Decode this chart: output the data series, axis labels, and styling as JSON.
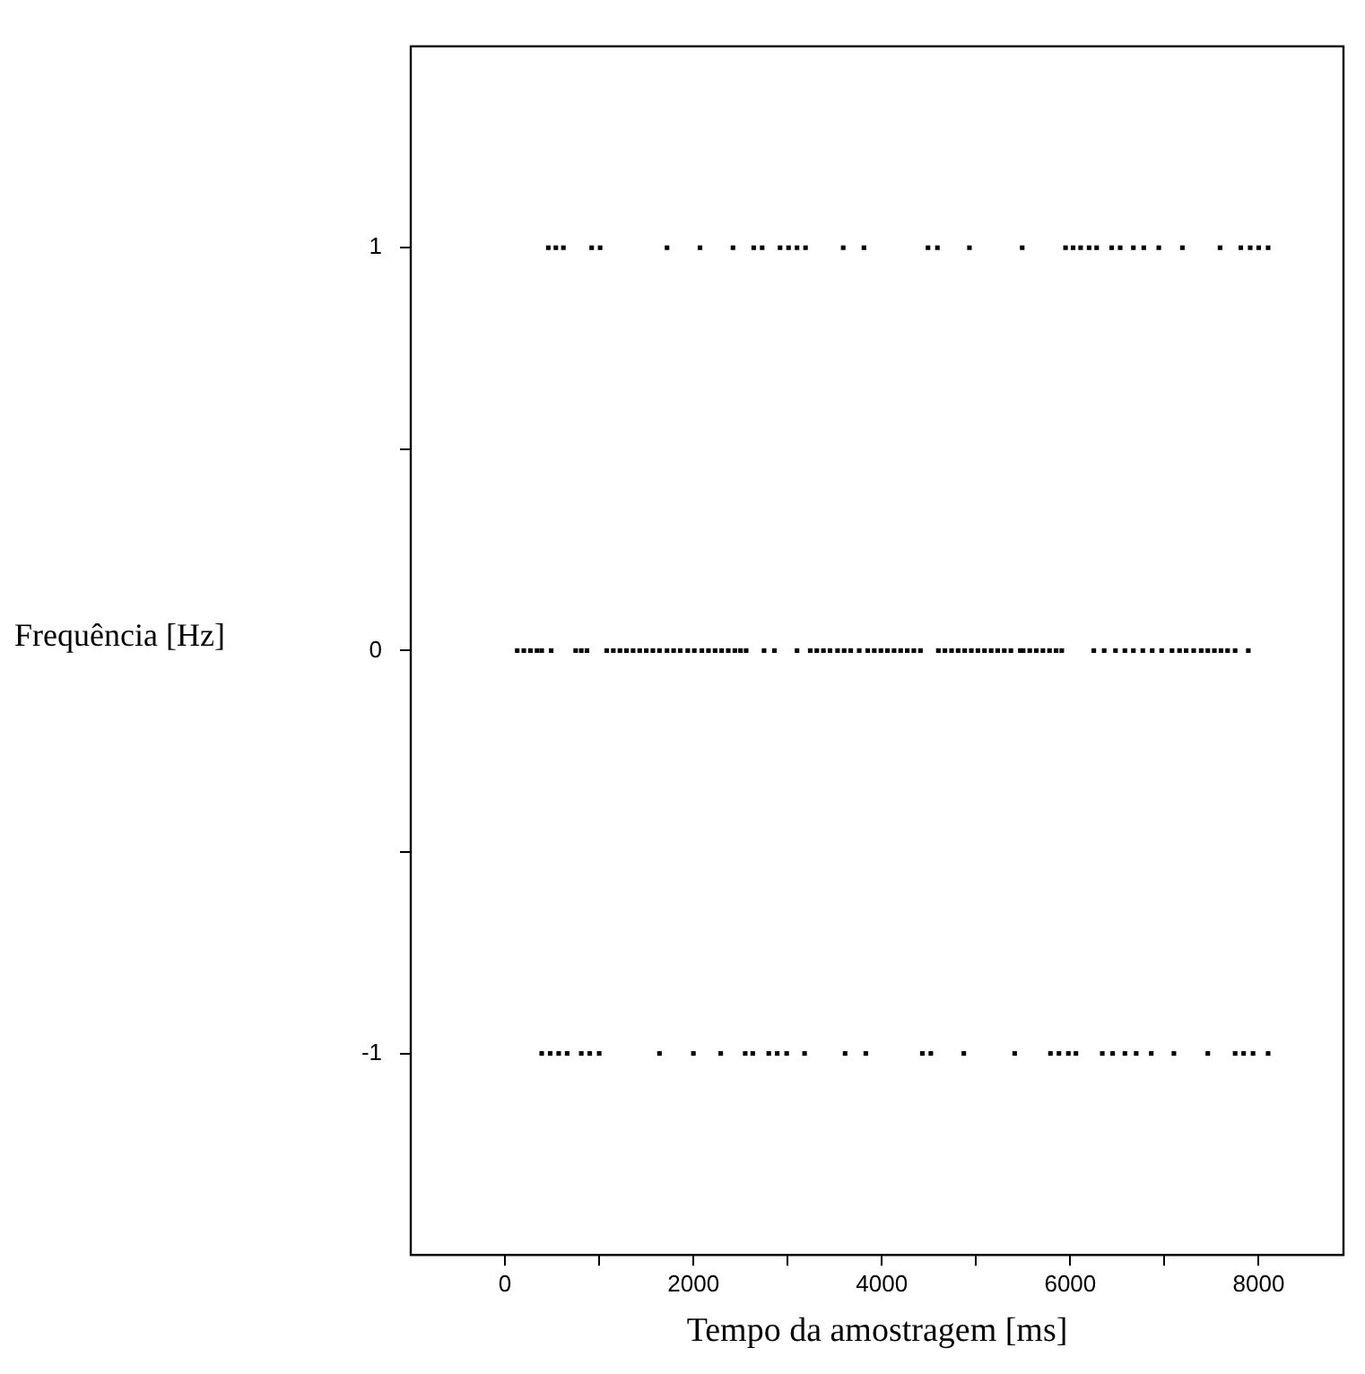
{
  "chart_data": {
    "type": "scatter",
    "xlabel": "Tempo da amostragem [ms]",
    "ylabel": "Frequência [Hz]",
    "marker": "square",
    "grid": false,
    "legend": false,
    "xlim": [
      -1000,
      8900
    ],
    "xticks": [
      0,
      {
        "value": 1000,
        "label": null
      },
      2000,
      {
        "value": 3000,
        "label": null
      },
      4000,
      {
        "value": 5000,
        "label": null
      },
      6000,
      {
        "value": 7000,
        "label": null
      },
      8000
    ],
    "ylim": [
      -1.5,
      1.5
    ],
    "yticks": [
      -1,
      {
        "value": -0.5,
        "label": null
      },
      0,
      {
        "value": 0.5,
        "label": null
      },
      1
    ],
    "series": [
      {
        "color": "#000000",
        "x": [
          460,
          540,
          620,
          920,
          1010,
          1720,
          2070,
          2420,
          2640,
          2730,
          2920,
          3010,
          3100,
          3190,
          3590,
          3810,
          4490,
          4590,
          4930,
          5490,
          5950,
          6030,
          6110,
          6200,
          6280,
          6440,
          6530,
          6670,
          6780,
          6940,
          7190,
          7590,
          7810,
          7910,
          8000,
          8100
        ],
        "values": [
          1,
          1,
          1,
          1,
          1,
          1,
          1,
          1,
          1,
          1,
          1,
          1,
          1,
          1,
          1,
          1,
          1,
          1,
          1,
          1,
          1,
          1,
          1,
          1,
          1,
          1,
          1,
          1,
          1,
          1,
          1,
          1,
          1,
          1,
          1,
          1
        ]
      },
      {
        "color": "#000000",
        "x": [
          130,
          200,
          270,
          340,
          390,
          490,
          750,
          810,
          870,
          1080,
          1150,
          1220,
          1290,
          1360,
          1430,
          1500,
          1570,
          1640,
          1720,
          1790,
          1860,
          1940,
          2010,
          2090,
          2160,
          2230,
          2300,
          2370,
          2440,
          2500,
          2560,
          2750,
          2860,
          3100,
          3240,
          3310,
          3380,
          3450,
          3530,
          3600,
          3670,
          3760,
          3850,
          3920,
          3990,
          4060,
          4130,
          4200,
          4270,
          4340,
          4410,
          4600,
          4670,
          4740,
          4810,
          4880,
          4950,
          5020,
          5090,
          5160,
          5230,
          5300,
          5370,
          5470,
          5500,
          5570,
          5640,
          5710,
          5780,
          5850,
          5910,
          6250,
          6360,
          6480,
          6580,
          6670,
          6770,
          6870,
          6970,
          7080,
          7160,
          7230,
          7310,
          7390,
          7460,
          7530,
          7600,
          7670,
          7750,
          7890
        ],
        "values": [
          0,
          0,
          0,
          0,
          0,
          0,
          0,
          0,
          0,
          0,
          0,
          0,
          0,
          0,
          0,
          0,
          0,
          0,
          0,
          0,
          0,
          0,
          0,
          0,
          0,
          0,
          0,
          0,
          0,
          0,
          0,
          0,
          0,
          0,
          0,
          0,
          0,
          0,
          0,
          0,
          0,
          0,
          0,
          0,
          0,
          0,
          0,
          0,
          0,
          0,
          0,
          0,
          0,
          0,
          0,
          0,
          0,
          0,
          0,
          0,
          0,
          0,
          0,
          0,
          0,
          0,
          0,
          0,
          0,
          0,
          0,
          0,
          0,
          0,
          0,
          0,
          0,
          0,
          0,
          0,
          0,
          0,
          0,
          0,
          0,
          0,
          0,
          0,
          0,
          0
        ]
      },
      {
        "color": "#000000",
        "x": [
          390,
          480,
          570,
          660,
          810,
          900,
          1000,
          1640,
          2000,
          2290,
          2550,
          2630,
          2800,
          2890,
          2990,
          3180,
          3610,
          3830,
          4430,
          4520,
          4870,
          5410,
          5790,
          5880,
          5980,
          6060,
          6340,
          6450,
          6580,
          6700,
          6860,
          7100,
          7460,
          7750,
          7840,
          7940,
          8100
        ],
        "values": [
          -1,
          -1,
          -1,
          -1,
          -1,
          -1,
          -1,
          -1,
          -1,
          -1,
          -1,
          -1,
          -1,
          -1,
          -1,
          -1,
          -1,
          -1,
          -1,
          -1,
          -1,
          -1,
          -1,
          -1,
          -1,
          -1,
          -1,
          -1,
          -1,
          -1,
          -1,
          -1,
          -1,
          -1,
          -1,
          -1,
          -1
        ]
      }
    ]
  }
}
